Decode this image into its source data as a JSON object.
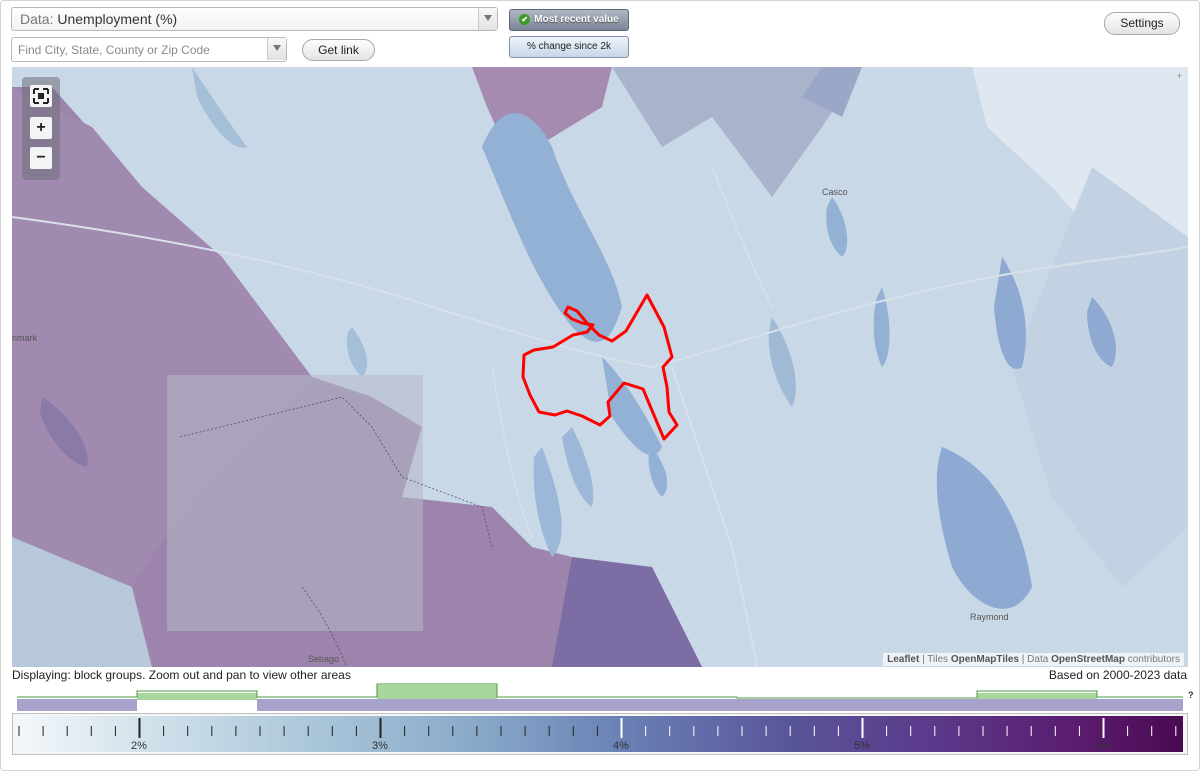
{
  "toolbar": {
    "data_prefix": "Data: ",
    "data_value": "Unemployment (%)",
    "search_placeholder": "Find City, State, County or Zip Code",
    "get_link_label": "Get link",
    "settings_label": "Settings",
    "toggle_active_label": "Most recent value",
    "toggle_inactive_label": "% change since 2k"
  },
  "map": {
    "places": {
      "casco": "Casco",
      "denmark": "nmark",
      "sebago": "Sebago",
      "raymond": "Raymond"
    },
    "corner_mark": "+",
    "attribution": {
      "leaflet": "Leaflet",
      "sep1": " | Tiles ",
      "tiles": "OpenMapTiles",
      "sep2": " | Data ",
      "data": "OpenStreetMap",
      "suffix": " contributors"
    },
    "highlight_color": "#ff0000"
  },
  "footer": {
    "displaying": "Displaying: block groups. Zoom out and pan to view other areas",
    "based_on": "Based on 2000-2023 data",
    "help_mark": "?"
  },
  "legend": {
    "major_labels": [
      "2%",
      "3%",
      "4%",
      "5%",
      "6%"
    ],
    "colors": {
      "low": "#f3f7fa",
      "mid": "#6a80b4",
      "high": "#4a0a52"
    }
  },
  "icons": {
    "fullscreen": "fullscreen-icon",
    "zoom_in": "+",
    "zoom_out": "−",
    "check": "✔"
  }
}
